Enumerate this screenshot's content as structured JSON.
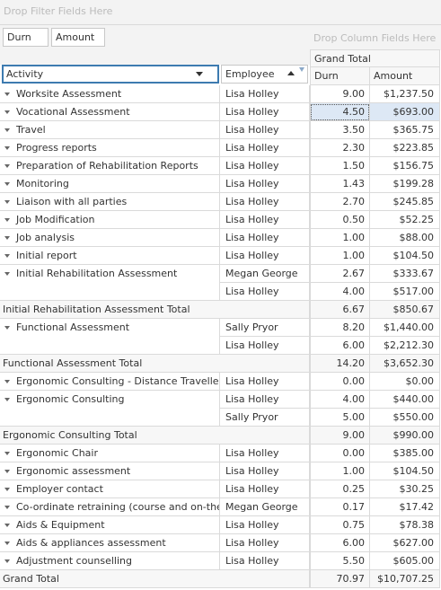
{
  "filter_area": "Drop Filter Fields Here",
  "data_fields": [
    "Durn",
    "Amount"
  ],
  "column_area": "Drop Column Fields Here",
  "column_header": "Grand Total",
  "row_fields": [
    "Activity",
    "Employee"
  ],
  "data_headers": [
    "Durn",
    "Amount"
  ],
  "rows": [
    {
      "activity": "Worksite Assessment",
      "lines": [
        {
          "employee": "Lisa Holley",
          "durn": "9.00",
          "amount": "$1,237.50"
        }
      ]
    },
    {
      "activity": "Vocational Assessment",
      "lines": [
        {
          "employee": "Lisa Holley",
          "durn": "4.50",
          "amount": "$693.00"
        }
      ]
    },
    {
      "activity": "Travel",
      "lines": [
        {
          "employee": "Lisa Holley",
          "durn": "3.50",
          "amount": "$365.75"
        }
      ]
    },
    {
      "activity": "Progress reports",
      "lines": [
        {
          "employee": "Lisa Holley",
          "durn": "2.30",
          "amount": "$223.85"
        }
      ]
    },
    {
      "activity": "Preparation of Rehabilitation Reports",
      "lines": [
        {
          "employee": "Lisa Holley",
          "durn": "1.50",
          "amount": "$156.75"
        }
      ]
    },
    {
      "activity": "Monitoring",
      "lines": [
        {
          "employee": "Lisa Holley",
          "durn": "1.43",
          "amount": "$199.28"
        }
      ]
    },
    {
      "activity": "Liaison with all parties",
      "lines": [
        {
          "employee": "Lisa Holley",
          "durn": "2.70",
          "amount": "$245.85"
        }
      ]
    },
    {
      "activity": "Job Modification",
      "lines": [
        {
          "employee": "Lisa Holley",
          "durn": "0.50",
          "amount": "$52.25"
        }
      ]
    },
    {
      "activity": "Job analysis",
      "lines": [
        {
          "employee": "Lisa Holley",
          "durn": "1.00",
          "amount": "$88.00"
        }
      ]
    },
    {
      "activity": "Initial report",
      "lines": [
        {
          "employee": "Lisa Holley",
          "durn": "1.00",
          "amount": "$104.50"
        }
      ]
    },
    {
      "activity": "Initial Rehabilitation Assessment",
      "lines": [
        {
          "employee": "Megan George",
          "durn": "2.67",
          "amount": "$333.67"
        },
        {
          "employee": "Lisa Holley",
          "durn": "4.00",
          "amount": "$517.00"
        }
      ]
    },
    {
      "total": "Initial Rehabilitation Assessment Total",
      "durn": "6.67",
      "amount": "$850.67"
    },
    {
      "activity": "Functional Assessment",
      "lines": [
        {
          "employee": "Sally Pryor",
          "durn": "8.20",
          "amount": "$1,440.00"
        },
        {
          "employee": "Lisa Holley",
          "durn": "6.00",
          "amount": "$2,212.30"
        }
      ]
    },
    {
      "total": "Functional Assessment Total",
      "durn": "14.20",
      "amount": "$3,652.30"
    },
    {
      "activity": "Ergonomic Consulting - Distance Travelled",
      "lines": [
        {
          "employee": "Lisa Holley",
          "durn": "0.00",
          "amount": "$0.00"
        }
      ]
    },
    {
      "activity": "Ergonomic Consulting",
      "lines": [
        {
          "employee": "Lisa Holley",
          "durn": "4.00",
          "amount": "$440.00"
        },
        {
          "employee": "Sally Pryor",
          "durn": "5.00",
          "amount": "$550.00"
        }
      ]
    },
    {
      "total": "Ergonomic Consulting Total",
      "durn": "9.00",
      "amount": "$990.00"
    },
    {
      "activity": "Ergonomic Chair",
      "lines": [
        {
          "employee": "Lisa Holley",
          "durn": "0.00",
          "amount": "$385.00"
        }
      ]
    },
    {
      "activity": "Ergonomic assessment",
      "lines": [
        {
          "employee": "Lisa Holley",
          "durn": "1.00",
          "amount": "$104.50"
        }
      ]
    },
    {
      "activity": "Employer contact",
      "lines": [
        {
          "employee": "Lisa Holley",
          "durn": "0.25",
          "amount": "$30.25"
        }
      ]
    },
    {
      "activity": "Co-ordinate retraining (course and on-the-job)",
      "lines": [
        {
          "employee": "Megan George",
          "durn": "0.17",
          "amount": "$17.42"
        }
      ]
    },
    {
      "activity": "Aids & Equipment",
      "lines": [
        {
          "employee": "Lisa Holley",
          "durn": "0.75",
          "amount": "$78.38"
        }
      ]
    },
    {
      "activity": "Aids & appliances assessment",
      "lines": [
        {
          "employee": "Lisa Holley",
          "durn": "6.00",
          "amount": "$627.00"
        }
      ]
    },
    {
      "activity": "Adjustment counselling",
      "lines": [
        {
          "employee": "Lisa Holley",
          "durn": "5.50",
          "amount": "$605.00"
        }
      ]
    },
    {
      "total": "Grand Total",
      "durn": "70.97",
      "amount": "$10,707.25"
    }
  ]
}
